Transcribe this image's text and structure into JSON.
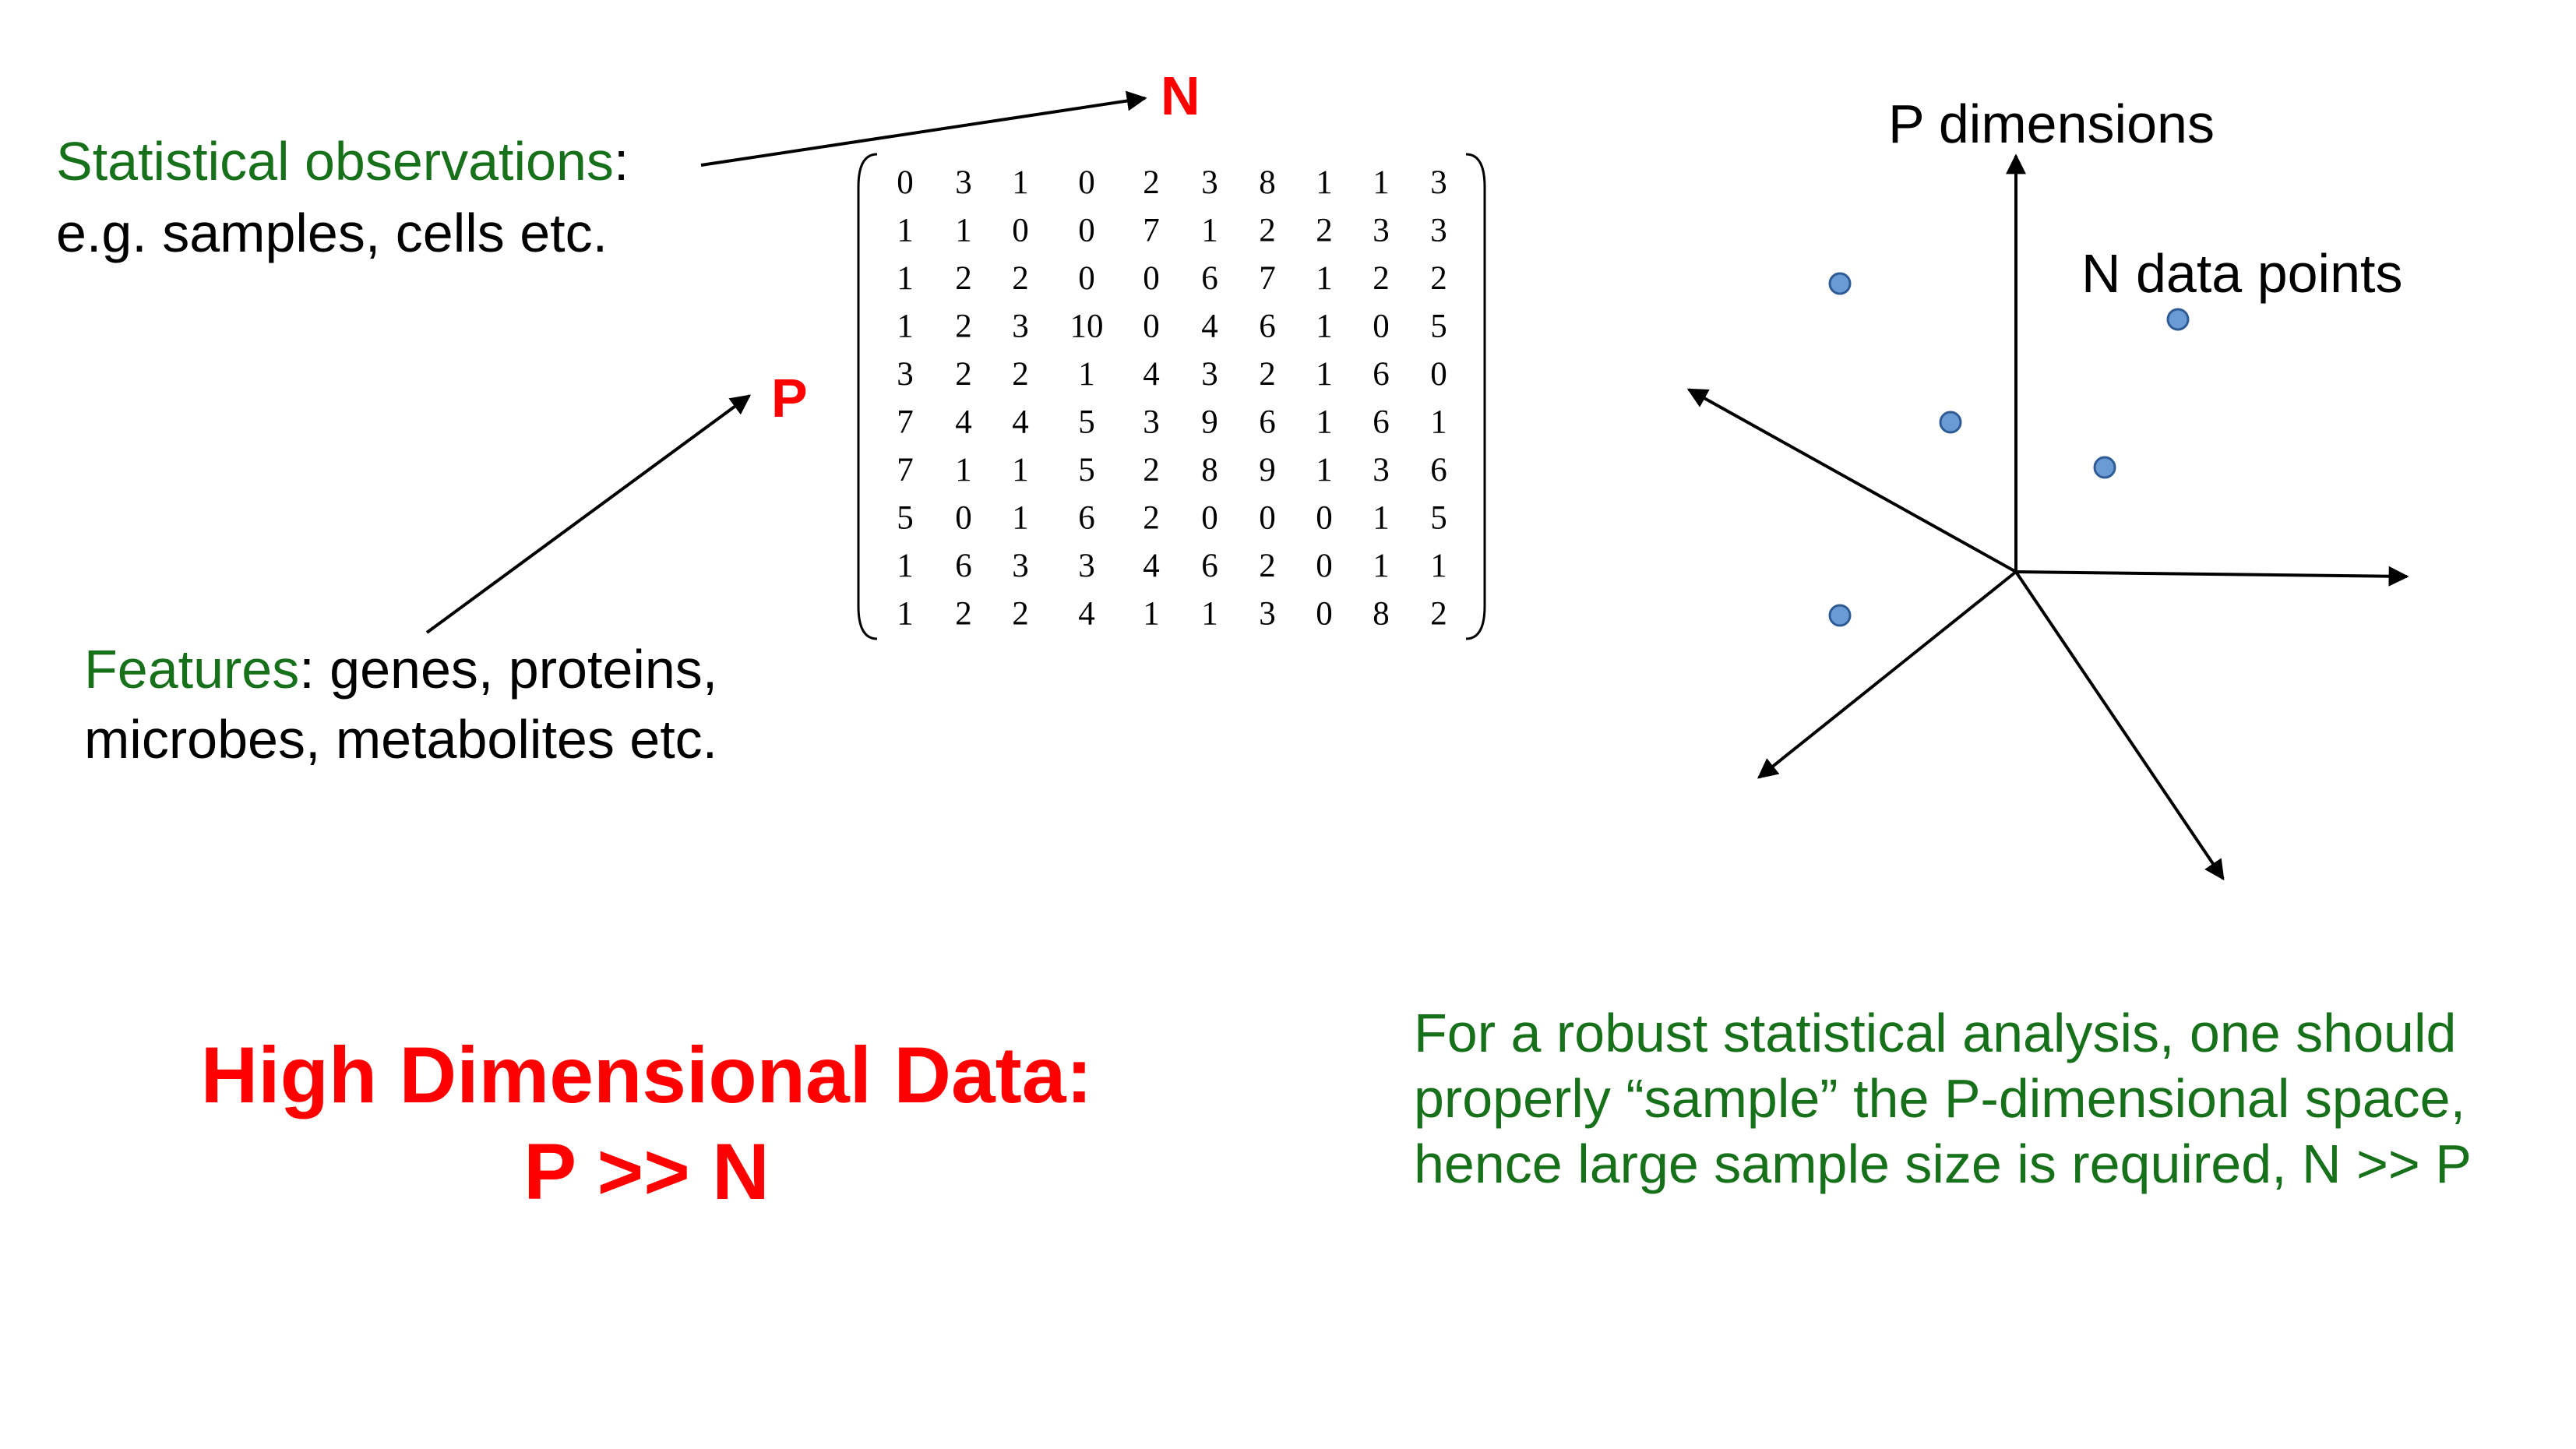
{
  "observations": {
    "term": "Statistical observations",
    "suffix": ":",
    "examples": "e.g. samples, cells etc."
  },
  "features": {
    "term": "Features",
    "suffix": ": genes, proteins,",
    "examples": "microbes, metabolites etc."
  },
  "matrix_labels": {
    "n": "N",
    "p": "P"
  },
  "matrix": [
    [
      "0",
      "3",
      "1",
      "0",
      "2",
      "3",
      "8",
      "1",
      "1",
      "3"
    ],
    [
      "1",
      "1",
      "0",
      "0",
      "7",
      "1",
      "2",
      "2",
      "3",
      "3"
    ],
    [
      "1",
      "2",
      "2",
      "0",
      "0",
      "6",
      "7",
      "1",
      "2",
      "2"
    ],
    [
      "1",
      "2",
      "3",
      "10",
      "0",
      "4",
      "6",
      "1",
      "0",
      "5"
    ],
    [
      "3",
      "2",
      "2",
      "1",
      "4",
      "3",
      "2",
      "1",
      "6",
      "0"
    ],
    [
      "7",
      "4",
      "4",
      "5",
      "3",
      "9",
      "6",
      "1",
      "6",
      "1"
    ],
    [
      "7",
      "1",
      "1",
      "5",
      "2",
      "8",
      "9",
      "1",
      "3",
      "6"
    ],
    [
      "5",
      "0",
      "1",
      "6",
      "2",
      "0",
      "0",
      "0",
      "1",
      "5"
    ],
    [
      "1",
      "6",
      "3",
      "3",
      "4",
      "6",
      "2",
      "0",
      "1",
      "1"
    ],
    [
      "1",
      "2",
      "2",
      "4",
      "1",
      "1",
      "3",
      "0",
      "8",
      "2"
    ]
  ],
  "headline": {
    "line1": "High Dimensional Data:",
    "line2": "P >> N"
  },
  "space": {
    "axis_label": "P dimensions",
    "points_label": "N data points"
  },
  "note": "For a robust statistical analysis, one should properly “sample” the P-dimensional space, hence large sample size is required, N >> P",
  "colors": {
    "green": "#17701a",
    "red": "#ff0000",
    "point_fill": "#6a9bd4",
    "point_stroke": "#2e5b94"
  }
}
